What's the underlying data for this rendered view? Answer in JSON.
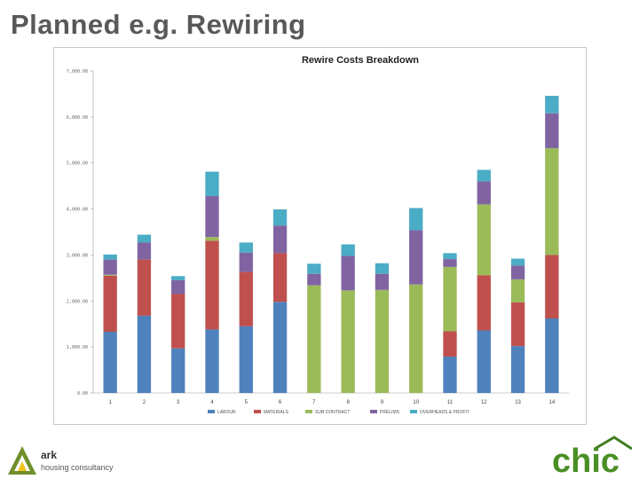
{
  "slide": {
    "title": "Planned e.g. Rewiring"
  },
  "chart_data": {
    "type": "bar",
    "stacked": true,
    "title": "Rewire Costs Breakdown",
    "xlabel": "",
    "ylabel": "",
    "ylim": [
      0,
      7000
    ],
    "y_ticks": [
      "0.00",
      "1,000.00",
      "2,000.00",
      "3,000.00",
      "4,000.00",
      "5,000.00",
      "6,000.00",
      "7,000.00"
    ],
    "categories": [
      "1",
      "2",
      "3",
      "4",
      "5",
      "6",
      "7",
      "8",
      "9",
      "10",
      "11",
      "12",
      "13",
      "14"
    ],
    "series": [
      {
        "name": "LABOUR",
        "color": "#4f81bd",
        "values": [
          1330,
          1680,
          970,
          1380,
          1450,
          1980,
          0,
          0,
          0,
          0,
          790,
          1360,
          1020,
          1620
        ]
      },
      {
        "name": "MATERIALS",
        "color": "#c0504d",
        "values": [
          1220,
          1220,
          1180,
          1930,
          1180,
          1060,
          0,
          0,
          0,
          0,
          550,
          1200,
          950,
          1380
        ]
      },
      {
        "name": "SUB CONTRACT",
        "color": "#9bbb59",
        "values": [
          20,
          0,
          0,
          80,
          0,
          0,
          2340,
          2230,
          2240,
          2360,
          1400,
          1540,
          500,
          2320
        ]
      },
      {
        "name": "PRELIMS",
        "color": "#8064a2",
        "values": [
          330,
          370,
          300,
          890,
          420,
          600,
          250,
          750,
          350,
          1180,
          170,
          500,
          300,
          760
        ]
      },
      {
        "name": "OVERHEADS & PROFIT",
        "color": "#4bacc6",
        "values": [
          110,
          170,
          90,
          530,
          220,
          350,
          220,
          250,
          230,
          480,
          130,
          250,
          150,
          380
        ]
      }
    ],
    "grid": false,
    "legend_position": "bottom"
  },
  "logos": {
    "ark": {
      "name": "ark",
      "subtitle": "housing consultancy",
      "icon": "ark-triangle-icon"
    },
    "chic": {
      "text": "chic",
      "icon": "chic-house-logo"
    }
  }
}
